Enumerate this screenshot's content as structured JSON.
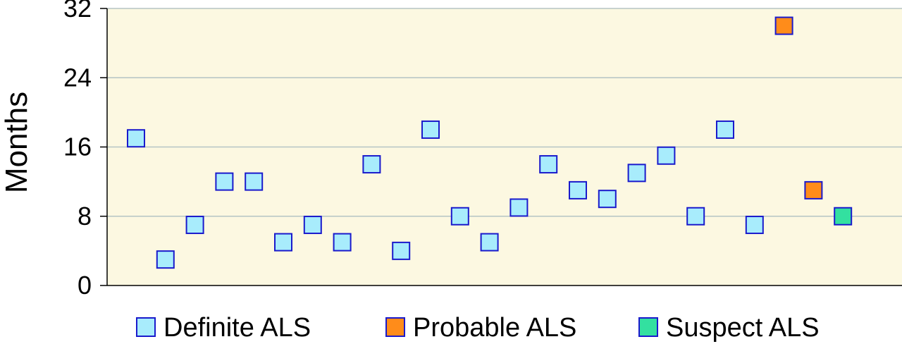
{
  "chart_data": {
    "type": "scatter",
    "title": "",
    "xlabel": "",
    "ylabel": "Months",
    "ylim": [
      0,
      32
    ],
    "yticks": [
      "0",
      "8",
      "16",
      "24",
      "32"
    ],
    "grid": true,
    "legend_position": "bottom",
    "colors": {
      "plot_background": "#fcf8e1",
      "gridline": "#b5c4c4",
      "marker_stroke": "#1a1acc"
    },
    "series": [
      {
        "name": "Definite ALS",
        "color": "#a8ecfc",
        "points": [
          {
            "x": 1,
            "y": 17
          },
          {
            "x": 2,
            "y": 3
          },
          {
            "x": 3,
            "y": 7
          },
          {
            "x": 4,
            "y": 12
          },
          {
            "x": 5,
            "y": 12
          },
          {
            "x": 6,
            "y": 5
          },
          {
            "x": 7,
            "y": 7
          },
          {
            "x": 8,
            "y": 5
          },
          {
            "x": 9,
            "y": 14
          },
          {
            "x": 10,
            "y": 4
          },
          {
            "x": 11,
            "y": 18
          },
          {
            "x": 12,
            "y": 8
          },
          {
            "x": 13,
            "y": 5
          },
          {
            "x": 14,
            "y": 9
          },
          {
            "x": 15,
            "y": 14
          },
          {
            "x": 16,
            "y": 11
          },
          {
            "x": 17,
            "y": 10
          },
          {
            "x": 18,
            "y": 13
          },
          {
            "x": 19,
            "y": 15
          },
          {
            "x": 20,
            "y": 8
          },
          {
            "x": 21,
            "y": 18
          },
          {
            "x": 22,
            "y": 7
          }
        ]
      },
      {
        "name": "Probable ALS",
        "color": "#ff8c1a",
        "points": [
          {
            "x": 23,
            "y": 30
          },
          {
            "x": 24,
            "y": 11
          }
        ]
      },
      {
        "name": "Suspect ALS",
        "color": "#33e0a0",
        "points": [
          {
            "x": 25,
            "y": 8
          }
        ]
      }
    ]
  }
}
